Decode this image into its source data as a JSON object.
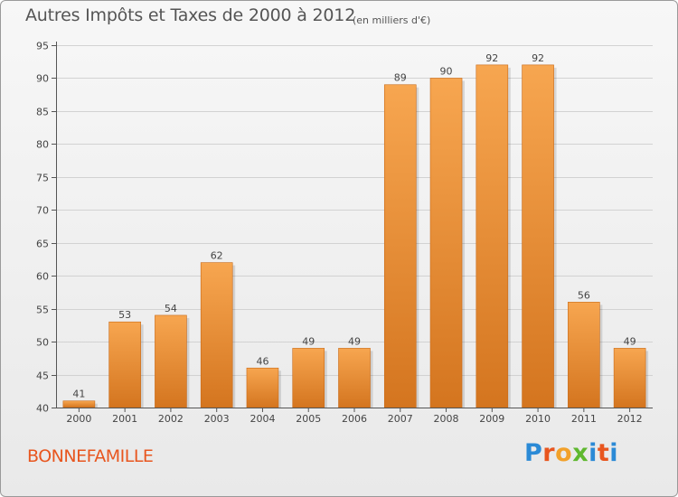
{
  "title": "Autres Impôts et Taxes de 2000 à 2012",
  "unit_note": "(en milliers d'€)",
  "commune": "BONNEFAMILLE",
  "logo": {
    "text": "Proxiti",
    "letter_colors": [
      "#2b8ad6",
      "#e8561f",
      "#f2a12a",
      "#5fb82f",
      "#2b8ad6",
      "#e8561f",
      "#2b8ad6"
    ]
  },
  "chart_data": {
    "type": "bar",
    "title": "Autres Impôts et Taxes de 2000 à 2012",
    "categories": [
      "2000",
      "2001",
      "2002",
      "2003",
      "2004",
      "2005",
      "2006",
      "2007",
      "2008",
      "2009",
      "2010",
      "2011",
      "2012"
    ],
    "values": [
      41,
      53,
      54,
      62,
      46,
      49,
      49,
      89,
      90,
      92,
      92,
      56,
      49
    ],
    "ylim": [
      40,
      95
    ],
    "yticks": [
      40,
      45,
      50,
      55,
      60,
      65,
      70,
      75,
      80,
      85,
      90,
      95
    ],
    "grid": true,
    "bar_color_top": "#f7a650",
    "bar_color_bottom": "#d4751f",
    "xlabel": "",
    "ylabel": ""
  }
}
